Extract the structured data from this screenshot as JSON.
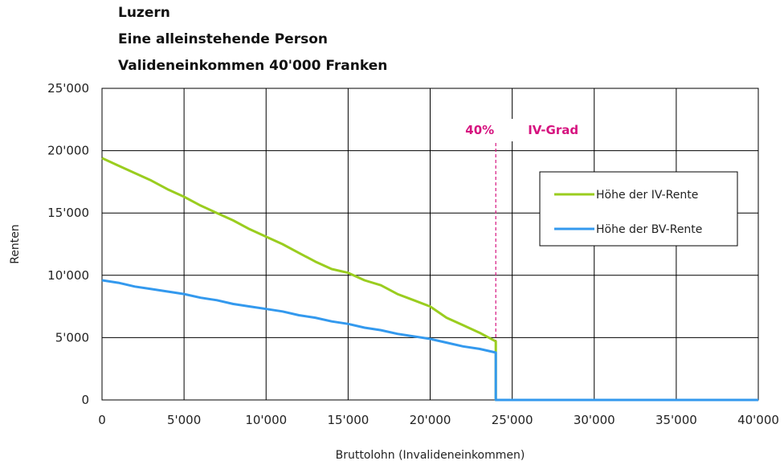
{
  "titles": {
    "line1": "Luzern",
    "line2": "Eine alleinstehende Person",
    "line3": "Valideneinkommen 40'000 Franken"
  },
  "chart_data": {
    "type": "line",
    "xlabel": "Bruttolohn (Invalideneinkommen)",
    "ylabel": "Renten",
    "xlim": [
      0,
      40000
    ],
    "ylim": [
      0,
      25000
    ],
    "grid": true,
    "x_ticks": [
      0,
      5000,
      10000,
      15000,
      20000,
      25000,
      30000,
      35000,
      40000
    ],
    "x_tick_labels": [
      "0",
      "5'000",
      "10'000",
      "15'000",
      "20'000",
      "25'000",
      "30'000",
      "35'000",
      "40'000"
    ],
    "y_ticks": [
      0,
      5000,
      10000,
      15000,
      20000,
      25000
    ],
    "y_tick_labels": [
      "0",
      "5'000",
      "10'000",
      "15'000",
      "20'000",
      "25'000"
    ],
    "legend_position": "right",
    "series": [
      {
        "name": "Höhe der IV-Rente",
        "color": "#9acd1f",
        "x": [
          0,
          1000,
          2000,
          3000,
          4000,
          5000,
          6000,
          7000,
          8000,
          9000,
          10000,
          11000,
          12000,
          13000,
          14000,
          15000,
          16000,
          17000,
          18000,
          19000,
          20000,
          21000,
          22000,
          23000,
          24000,
          24001,
          40000
        ],
        "y": [
          19400,
          18800,
          18200,
          17600,
          16900,
          16300,
          15600,
          15000,
          14400,
          13700,
          13100,
          12500,
          11800,
          11100,
          10500,
          10200,
          9600,
          9200,
          8500,
          8000,
          7500,
          6600,
          6000,
          5400,
          4700,
          0,
          0
        ]
      },
      {
        "name": "Höhe der BV-Rente",
        "color": "#3399ee",
        "x": [
          0,
          1000,
          2000,
          3000,
          4000,
          5000,
          6000,
          7000,
          8000,
          9000,
          10000,
          11000,
          12000,
          13000,
          14000,
          15000,
          16000,
          17000,
          18000,
          19000,
          20000,
          21000,
          22000,
          23000,
          24000,
          24001,
          40000
        ],
        "y": [
          9600,
          9400,
          9100,
          8900,
          8700,
          8500,
          8200,
          8000,
          7700,
          7500,
          7300,
          7100,
          6800,
          6600,
          6300,
          6100,
          5800,
          5600,
          5300,
          5100,
          4900,
          4600,
          4300,
          4100,
          3800,
          0,
          0
        ]
      }
    ],
    "annotations": [
      {
        "x": 24000,
        "label_pct": "40%",
        "label_text": "IV-Grad",
        "color": "#d6137f"
      }
    ]
  }
}
